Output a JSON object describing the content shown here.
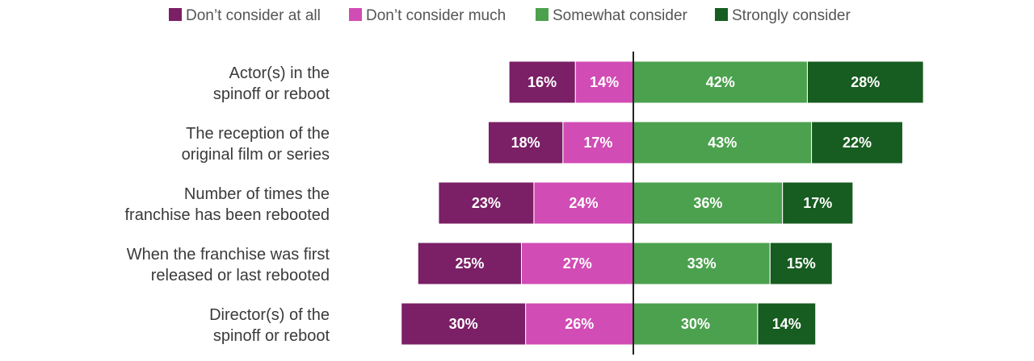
{
  "chart_data": {
    "type": "bar",
    "orientation": "horizontal",
    "stacked": "diverging",
    "legend_position": "top",
    "grid": false,
    "categories": [
      [
        "Actor(s) in the",
        "spinoff or reboot"
      ],
      [
        "The reception of the",
        "original film or series"
      ],
      [
        "Number of times the",
        "franchise has been rebooted"
      ],
      [
        "When the franchise was first",
        "released or last rebooted"
      ],
      [
        "Director(s) of the",
        "spinoff or reboot"
      ]
    ],
    "series": [
      {
        "name": "Don’t consider at all",
        "color": "#7b1f66",
        "side": "negative",
        "values": [
          16,
          18,
          23,
          25,
          30
        ],
        "labels": [
          "16%",
          "18%",
          "23%",
          "25%",
          "30%"
        ]
      },
      {
        "name": "Don’t consider much",
        "color": "#d14cb4",
        "side": "negative",
        "values": [
          14,
          17,
          24,
          27,
          26
        ],
        "labels": [
          "14%",
          "17%",
          "24%",
          "27%",
          "26%"
        ]
      },
      {
        "name": "Somewhat consider",
        "color": "#4ca14e",
        "side": "positive",
        "values": [
          42,
          43,
          36,
          33,
          30
        ],
        "labels": [
          "42%",
          "43%",
          "36%",
          "33%",
          "30%"
        ]
      },
      {
        "name": "Strongly consider",
        "color": "#175c20",
        "side": "positive",
        "values": [
          28,
          22,
          17,
          15,
          14
        ],
        "labels": [
          "28%",
          "22%",
          "17%",
          "15%",
          "14%"
        ]
      }
    ]
  }
}
